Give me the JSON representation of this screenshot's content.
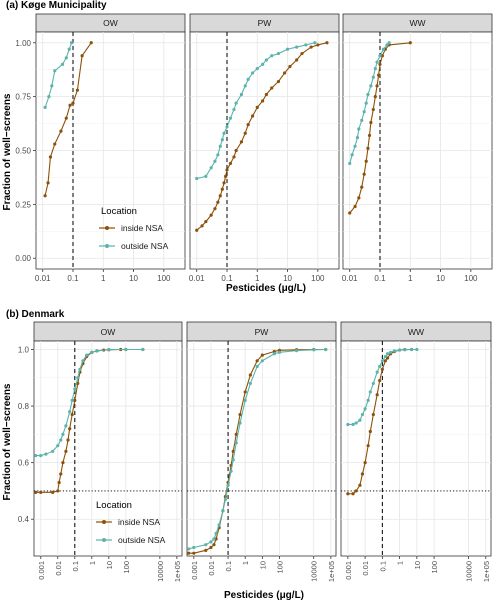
{
  "chart_data": [
    {
      "type": "line",
      "title": "(a) Køge Municipality",
      "xlabel": "Pesticides (μg/L)",
      "ylabel": "Fraction of well−screens",
      "x_scale": "log",
      "xlim": [
        0.006,
        500
      ],
      "ylim": [
        -0.05,
        1.05
      ],
      "x_ticks": [
        0.01,
        0.1,
        1,
        10,
        100
      ],
      "x_tick_labels": [
        "0.01",
        "0.1",
        "1",
        "10",
        "100"
      ],
      "y_ticks": [
        0,
        0.25,
        0.5,
        0.75,
        1
      ],
      "y_tick_labels": [
        "0.00",
        "0.25",
        "0.50",
        "0.75",
        "1.00"
      ],
      "reference_vline": 0.1,
      "grid": true,
      "legend": {
        "title": "Location",
        "placement": "inside first panel, lower right",
        "entries": [
          "inside NSA",
          "outside NSA"
        ]
      },
      "colors": {
        "inside NSA": "#8c510a",
        "outside NSA": "#5ab4ac"
      },
      "panels": [
        {
          "name": "OW",
          "series": [
            {
              "name": "inside NSA",
              "x": [
                0.012,
                0.015,
                0.018,
                0.025,
                0.04,
                0.06,
                0.08,
                0.1,
                0.14,
                0.2,
                0.4
              ],
              "y": [
                0.29,
                0.35,
                0.47,
                0.53,
                0.59,
                0.65,
                0.71,
                0.72,
                0.78,
                0.94,
                1.0
              ]
            },
            {
              "name": "outside NSA",
              "x": [
                0.012,
                0.016,
                0.02,
                0.025,
                0.045,
                0.06,
                0.075,
                0.09
              ],
              "y": [
                0.7,
                0.75,
                0.8,
                0.87,
                0.9,
                0.93,
                0.97,
                1.0
              ]
            }
          ]
        },
        {
          "name": "PW",
          "series": [
            {
              "name": "inside NSA",
              "x": [
                0.01,
                0.015,
                0.02,
                0.03,
                0.04,
                0.05,
                0.06,
                0.07,
                0.08,
                0.09,
                0.1,
                0.13,
                0.17,
                0.2,
                0.3,
                0.4,
                0.5,
                0.7,
                1,
                1.5,
                2,
                3,
                5,
                8,
                12,
                20,
                30,
                60,
                100,
                200
              ],
              "y": [
                0.13,
                0.15,
                0.17,
                0.2,
                0.23,
                0.26,
                0.29,
                0.32,
                0.35,
                0.38,
                0.41,
                0.44,
                0.47,
                0.5,
                0.54,
                0.58,
                0.62,
                0.66,
                0.7,
                0.73,
                0.76,
                0.79,
                0.82,
                0.86,
                0.89,
                0.92,
                0.95,
                0.98,
                0.99,
                1.0
              ]
            },
            {
              "name": "outside NSA",
              "x": [
                0.01,
                0.02,
                0.03,
                0.04,
                0.05,
                0.06,
                0.07,
                0.08,
                0.1,
                0.13,
                0.17,
                0.2,
                0.3,
                0.4,
                0.5,
                0.7,
                1,
                1.5,
                2,
                3,
                5,
                10,
                20,
                40,
                80
              ],
              "y": [
                0.37,
                0.38,
                0.42,
                0.45,
                0.48,
                0.52,
                0.55,
                0.58,
                0.61,
                0.65,
                0.69,
                0.72,
                0.76,
                0.8,
                0.83,
                0.86,
                0.88,
                0.9,
                0.92,
                0.94,
                0.95,
                0.97,
                0.98,
                0.99,
                1.0
              ]
            }
          ]
        },
        {
          "name": "WW",
          "series": [
            {
              "name": "inside NSA",
              "x": [
                0.01,
                0.015,
                0.02,
                0.025,
                0.03,
                0.035,
                0.04,
                0.045,
                0.05,
                0.06,
                0.07,
                0.08,
                0.09,
                0.1,
                0.12,
                0.15,
                0.2,
                1
              ],
              "y": [
                0.21,
                0.24,
                0.28,
                0.33,
                0.39,
                0.45,
                0.51,
                0.57,
                0.63,
                0.69,
                0.75,
                0.8,
                0.85,
                0.9,
                0.94,
                0.97,
                0.99,
                1.0
              ]
            },
            {
              "name": "outside NSA",
              "x": [
                0.01,
                0.012,
                0.015,
                0.018,
                0.02,
                0.025,
                0.03,
                0.035,
                0.04,
                0.05,
                0.06,
                0.07,
                0.08,
                0.1,
                0.13,
                0.17,
                0.2
              ],
              "y": [
                0.44,
                0.48,
                0.52,
                0.56,
                0.6,
                0.64,
                0.68,
                0.72,
                0.76,
                0.8,
                0.84,
                0.88,
                0.91,
                0.94,
                0.97,
                0.99,
                1.0
              ]
            }
          ]
        }
      ]
    },
    {
      "type": "line",
      "title": "(b) Denmark",
      "xlabel": "Pesticides (μg/L)",
      "ylabel": "Fraction of well−screens",
      "x_scale": "log",
      "xlim": [
        0.0004,
        200000
      ],
      "ylim": [
        0.27,
        1.03
      ],
      "x_ticks": [
        0.001,
        0.01,
        0.1,
        1,
        10,
        100,
        10000,
        100000
      ],
      "x_tick_labels": [
        "0.001",
        "0.01",
        "0.1",
        "1",
        "10",
        "100",
        "10000",
        "1e+05"
      ],
      "y_ticks": [
        0.4,
        0.6,
        0.8,
        1.0
      ],
      "y_tick_labels": [
        "0.4",
        "0.6",
        "0.8",
        "1.0"
      ],
      "reference_vline": 0.1,
      "reference_hline": 0.5,
      "grid": true,
      "legend": {
        "title": "Location",
        "placement": "inside first panel, lower right",
        "entries": [
          "inside NSA",
          "outside NSA"
        ]
      },
      "colors": {
        "inside NSA": "#8c510a",
        "outside NSA": "#5ab4ac"
      },
      "panels": [
        {
          "name": "OW",
          "series": [
            {
              "name": "inside NSA",
              "x": [
                0.0005,
                0.001,
                0.005,
                0.01,
                0.012,
                0.015,
                0.02,
                0.03,
                0.04,
                0.05,
                0.07,
                0.1,
                0.15,
                0.2,
                0.3,
                0.5,
                1,
                2,
                5,
                10,
                50,
                100,
                1000
              ],
              "y": [
                0.495,
                0.495,
                0.495,
                0.5,
                0.53,
                0.56,
                0.6,
                0.64,
                0.68,
                0.72,
                0.77,
                0.82,
                0.88,
                0.92,
                0.95,
                0.975,
                0.99,
                0.995,
                0.998,
                0.999,
                1.0,
                1.0,
                1.0
              ]
            },
            {
              "name": "outside NSA",
              "x": [
                0.0005,
                0.001,
                0.002,
                0.005,
                0.01,
                0.015,
                0.02,
                0.03,
                0.05,
                0.07,
                0.1,
                0.15,
                0.2,
                0.3,
                0.5,
                1,
                2,
                10,
                100,
                1000
              ],
              "y": [
                0.625,
                0.625,
                0.63,
                0.64,
                0.66,
                0.68,
                0.7,
                0.73,
                0.78,
                0.82,
                0.86,
                0.9,
                0.93,
                0.96,
                0.98,
                0.99,
                0.995,
                1.0,
                1.0,
                1.0
              ]
            }
          ]
        },
        {
          "name": "PW",
          "series": [
            {
              "name": "inside NSA",
              "x": [
                0.0005,
                0.001,
                0.005,
                0.01,
                0.015,
                0.02,
                0.03,
                0.05,
                0.07,
                0.1,
                0.15,
                0.2,
                0.3,
                0.5,
                1,
                2,
                5,
                10,
                50,
                100,
                1000,
                10000,
                50000
              ],
              "y": [
                0.28,
                0.28,
                0.29,
                0.3,
                0.31,
                0.33,
                0.37,
                0.43,
                0.48,
                0.53,
                0.59,
                0.64,
                0.7,
                0.77,
                0.85,
                0.91,
                0.96,
                0.98,
                0.993,
                0.997,
                0.999,
                1.0,
                1.0
              ]
            },
            {
              "name": "outside NSA",
              "x": [
                0.0005,
                0.001,
                0.005,
                0.01,
                0.015,
                0.02,
                0.03,
                0.05,
                0.07,
                0.1,
                0.15,
                0.2,
                0.3,
                0.5,
                1,
                2,
                5,
                10,
                50,
                100,
                1000,
                10000,
                50000
              ],
              "y": [
                0.295,
                0.3,
                0.31,
                0.32,
                0.33,
                0.35,
                0.38,
                0.43,
                0.47,
                0.52,
                0.57,
                0.61,
                0.67,
                0.74,
                0.82,
                0.88,
                0.94,
                0.96,
                0.985,
                0.99,
                0.996,
                0.999,
                1.0
              ]
            }
          ]
        },
        {
          "name": "WW",
          "series": [
            {
              "name": "inside NSA",
              "x": [
                0.001,
                0.002,
                0.003,
                0.005,
                0.007,
                0.01,
                0.015,
                0.02,
                0.03,
                0.05,
                0.07,
                0.1,
                0.15,
                0.2,
                0.3,
                0.5,
                1,
                2,
                5
              ],
              "y": [
                0.49,
                0.49,
                0.5,
                0.52,
                0.56,
                0.6,
                0.66,
                0.71,
                0.77,
                0.84,
                0.89,
                0.93,
                0.96,
                0.97,
                0.985,
                0.993,
                0.998,
                1.0,
                1.0
              ]
            },
            {
              "name": "outside NSA",
              "x": [
                0.001,
                0.002,
                0.003,
                0.005,
                0.007,
                0.01,
                0.015,
                0.02,
                0.03,
                0.05,
                0.07,
                0.1,
                0.15,
                0.2,
                0.3,
                0.5,
                1,
                2,
                5,
                10
              ],
              "y": [
                0.735,
                0.735,
                0.74,
                0.75,
                0.77,
                0.79,
                0.82,
                0.85,
                0.88,
                0.92,
                0.94,
                0.96,
                0.975,
                0.985,
                0.99,
                0.995,
                0.998,
                0.999,
                1.0,
                1.0
              ]
            }
          ]
        }
      ]
    }
  ]
}
